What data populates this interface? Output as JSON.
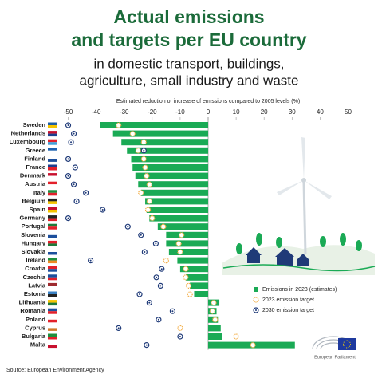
{
  "chart_data": {
    "type": "bar",
    "orientation": "horizontal",
    "title": [
      "Actual emissions",
      "and targets per EU country"
    ],
    "subtitle": [
      "in domestic transport, buildings,",
      "agriculture, small industry and waste"
    ],
    "x_label": "Estimated reduction or increase of emissions compared to 2005 levels (%)",
    "categories": [
      "Sweden",
      "Netherlands",
      "Luxembourg",
      "Greece",
      "Finland",
      "France",
      "Denmark",
      "Austria",
      "Italy",
      "Belgium",
      "Spain",
      "Germany",
      "Portugal",
      "Slovenia",
      "Hungary",
      "Slovakia",
      "Ireland",
      "Croatia",
      "Czechia",
      "Latvia",
      "Estonia",
      "Lithuania",
      "Romania",
      "Poland",
      "Cyprus",
      "Bulgaria",
      "Malta"
    ],
    "series": [
      {
        "name": "Emissions in 2023 (estimates)",
        "marker": "bar",
        "color": "#1aaa55",
        "values": [
          -38.5,
          -34,
          -31,
          -29,
          -27.5,
          -27,
          -26,
          -25,
          -24,
          -22.5,
          -22,
          -21,
          -18,
          -15,
          -15,
          -14,
          -11,
          -10,
          -8,
          -6.5,
          -5,
          4,
          3,
          3.5,
          4.5,
          5,
          31
        ]
      },
      {
        "name": "2023 emission target",
        "marker": "dashed-circle",
        "color": "#f2a93b",
        "values": [
          -32,
          -27,
          -23,
          -25,
          -23,
          -22.5,
          -22,
          -21,
          -24,
          -21,
          -21.5,
          -20,
          -16,
          -9.5,
          -10.5,
          -10,
          -15,
          -8,
          -8,
          -7,
          -6.5,
          2,
          1.5,
          2.5,
          -10,
          10,
          16
        ]
      },
      {
        "name": "2030 emission target",
        "marker": "dotted-circle",
        "color": "#1f3a78",
        "values": [
          -50,
          -48,
          -49,
          -23,
          -50,
          -47.5,
          -50,
          -48,
          -43.7,
          -47,
          -37.7,
          -50,
          -28.7,
          -24,
          -18.7,
          -22.7,
          -42,
          -16.6,
          -18.5,
          -17,
          -24.5,
          -21,
          -12.7,
          -17.7,
          -32,
          -10,
          -22
        ]
      }
    ],
    "xlim": [
      -55,
      55
    ],
    "xticks": [
      -50,
      -40,
      -30,
      -20,
      -10,
      0,
      10,
      20,
      30,
      40,
      50
    ],
    "legend": "lower right",
    "source": "Source: European Environment Agency",
    "logo": "European Parliament"
  }
}
